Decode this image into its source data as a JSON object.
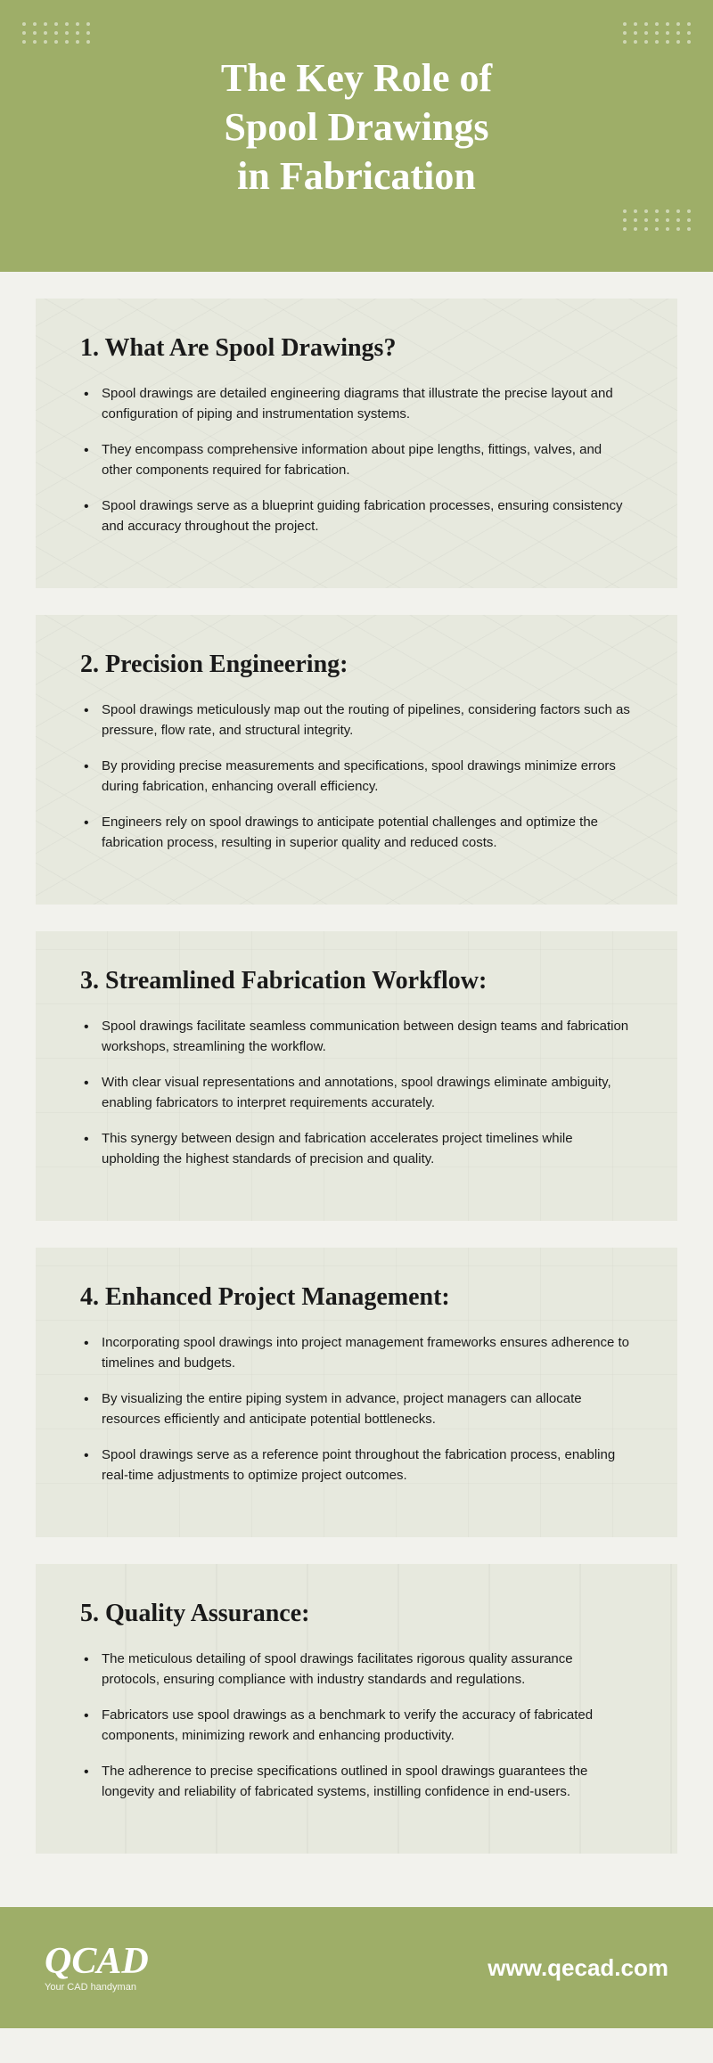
{
  "colors": {
    "header_bg": "#9eae68",
    "section_bg": "#e7e9de",
    "body_bg": "#f2f2ed",
    "text": "#1a1a1a",
    "white": "#ffffff"
  },
  "typography": {
    "title_size": 44,
    "section_title_size": 28,
    "body_size": 15,
    "heading_font": "Georgia, serif",
    "body_font": "Segoe UI, sans-serif"
  },
  "header": {
    "title_line1": "The Key Role of",
    "title_line2": "Spool Drawings",
    "title_line3": "in Fabrication"
  },
  "sections": [
    {
      "title": "1. What Are Spool Drawings?",
      "bg_variant": "iso",
      "bullets": [
        "Spool drawings are detailed engineering diagrams that illustrate the precise layout and configuration of piping and instrumentation systems.",
        "They encompass comprehensive information about pipe lengths, fittings, valves, and other components required for fabrication.",
        "Spool drawings serve as a blueprint guiding fabrication processes, ensuring consistency and accuracy throughout the project."
      ]
    },
    {
      "title": "2. Precision Engineering:",
      "bg_variant": "iso",
      "bullets": [
        "Spool drawings meticulously map out the routing of pipelines, considering factors such as pressure, flow rate, and structural integrity.",
        "By providing precise measurements and specifications, spool drawings minimize errors during fabrication, enhancing overall efficiency.",
        "Engineers rely on spool drawings to anticipate potential challenges and optimize the fabrication process, resulting in superior quality and reduced costs."
      ]
    },
    {
      "title": "3. Streamlined Fabrication Workflow:",
      "bg_variant": "tech",
      "bullets": [
        "Spool drawings facilitate seamless communication between design teams and fabrication workshops, streamlining the workflow.",
        "With clear visual representations and annotations, spool drawings eliminate ambiguity, enabling fabricators to interpret requirements accurately.",
        "This synergy between design and fabrication accelerates project timelines while upholding the highest standards of precision and quality."
      ]
    },
    {
      "title": "4. Enhanced Project Management:",
      "bg_variant": "tech",
      "bullets": [
        "Incorporating spool drawings into project management frameworks ensures adherence to timelines and budgets.",
        "By visualizing the entire piping system in advance, project managers can allocate resources efficiently and anticipate potential bottlenecks.",
        "Spool drawings serve as a reference point throughout the fabrication process, enabling real-time adjustments to optimize project outcomes."
      ]
    },
    {
      "title": "5. Quality Assurance:",
      "bg_variant": "struct",
      "bullets": [
        "The meticulous detailing of spool drawings facilitates rigorous quality assurance protocols, ensuring compliance with industry standards and regulations.",
        "Fabricators use spool drawings as a benchmark to verify the accuracy of fabricated components, minimizing rework and enhancing productivity.",
        "The adherence to precise specifications outlined in spool drawings guarantees the longevity and reliability of fabricated systems, instilling confidence in end-users."
      ]
    }
  ],
  "footer": {
    "logo_main": "QCAD",
    "logo_sub": "Your CAD handyman",
    "logo_main_size": 42,
    "website": "www.qecad.com",
    "website_size": 26
  }
}
